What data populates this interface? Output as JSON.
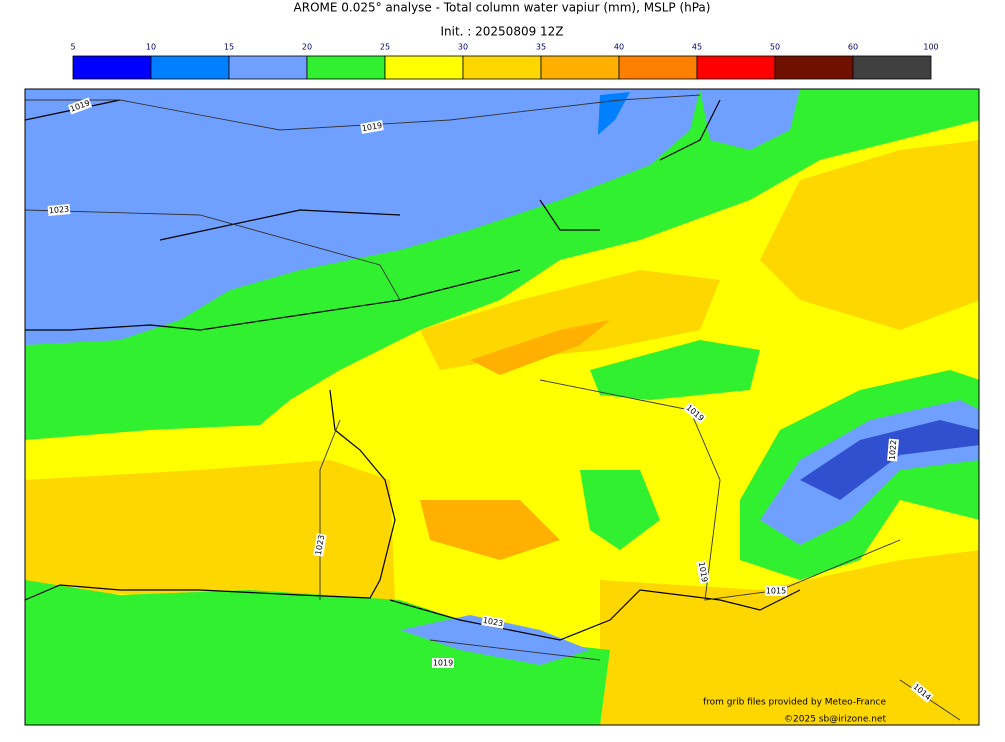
{
  "title": "AROME 0.025° analyse - Total column water vapiur (mm), MSLP (hPa)",
  "subtitle": "Init. : 20250809 12Z",
  "colorbar": {
    "ticks": [
      5,
      10,
      15,
      20,
      25,
      30,
      35,
      40,
      45,
      50,
      60,
      100
    ],
    "colors": [
      "#0000ff",
      "#0080ff",
      "#70a0ff",
      "#30f030",
      "#ffff00",
      "#ffd700",
      "#ffb000",
      "#ff8000",
      "#ff0000",
      "#701000",
      "#404040"
    ]
  },
  "isobar_labels": [
    "1019",
    "1019",
    "1023",
    "1023",
    "1019",
    "1022",
    "1019",
    "1015",
    "1023",
    "1019",
    "1014"
  ],
  "credits": [
    "from grib files provided by Meteo-France",
    "©2025 sb@irizone.net"
  ]
}
